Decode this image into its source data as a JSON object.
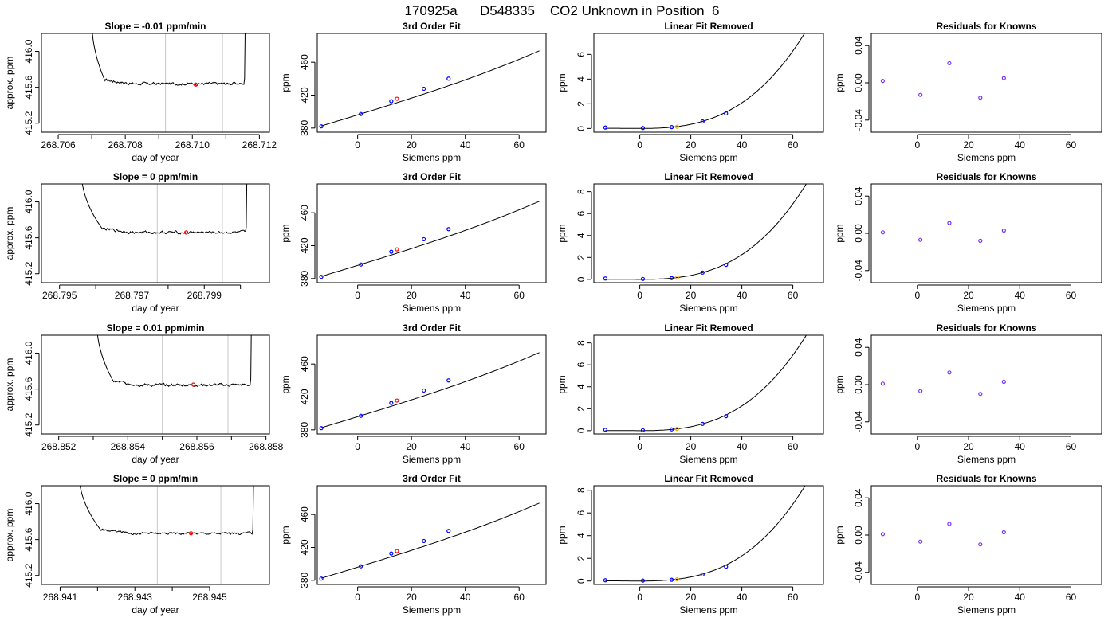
{
  "figure": {
    "title": "170925a      D548335    CO2 Unknown in Position  6"
  },
  "colors": {
    "axis": "#000000",
    "curve": "#000000",
    "window_line": "#c8c8c8",
    "known_point": "#0000ff",
    "unknown_point": "#ff0000",
    "unknown_fitted_point": "#ffa500",
    "residual_point": "#7b2ff7"
  },
  "chart_data": [
    {
      "type": "line",
      "title": "Slope =  -0.01  ppm/min",
      "xlabel": "day of year",
      "ylabel": "approx. ppm",
      "xlim": [
        268.7055,
        268.7123
      ],
      "ylim": [
        415.1,
        416.2
      ],
      "xticks": [
        268.706,
        268.707,
        268.708,
        268.709,
        268.71,
        268.711,
        268.712
      ],
      "xticklabels": [
        "268.706",
        "",
        "268.708",
        "",
        "268.710",
        "",
        "268.712"
      ],
      "yticks": [
        415.2,
        415.6,
        416.0
      ],
      "yticklabels": [
        "415.2",
        "415.6",
        "416.0"
      ],
      "window": [
        268.7092,
        268.7109
      ],
      "trace": {
        "start": 268.707,
        "drop_end": 268.7074,
        "end": 268.7116,
        "rise_start": 268.71155,
        "top": 416.35,
        "level": 415.64,
        "noise": 0.012
      },
      "marker": {
        "x": 268.7101,
        "y": 415.63
      }
    },
    {
      "type": "line",
      "title": "3rd Order Fit",
      "xlabel": "Siemens ppm",
      "ylabel": "ppm",
      "xlim": [
        -15,
        70
      ],
      "ylim": [
        375,
        495
      ],
      "xticks": [
        0,
        20,
        40,
        60
      ],
      "yticks": [
        380,
        420,
        460
      ],
      "curve": {
        "slope": 1.0,
        "intercept": 396.0,
        "quadratic": 0.0006,
        "cubic": 2.5e-05
      },
      "knowns": [
        {
          "x": -13.5,
          "y": 382.1
        },
        {
          "x": 1.2,
          "y": 397.1
        },
        {
          "x": 12.5,
          "y": 412.6
        },
        {
          "x": 24.6,
          "y": 427.8
        },
        {
          "x": 33.8,
          "y": 440.1
        }
      ],
      "unknown": {
        "x": 14.6,
        "y": 415.6
      }
    },
    {
      "type": "line",
      "title": "Linear Fit Removed",
      "xlabel": "Siemens ppm",
      "ylabel": "ppm",
      "xlim": [
        -18,
        72
      ],
      "ylim": [
        -0.3,
        7.7
      ],
      "xticks": [
        0,
        20,
        40,
        60
      ],
      "yticks": [
        0,
        2,
        4,
        6
      ],
      "curve": {
        "a": 0.0,
        "b": 0.0,
        "c": 0.0004,
        "d": 2.24e-05
      },
      "knowns": [
        {
          "x": -13.5,
          "y": 0.08
        },
        {
          "x": 1.2,
          "y": 0.04
        },
        {
          "x": 12.5,
          "y": 0.11
        },
        {
          "x": 24.6,
          "y": 0.57
        },
        {
          "x": 33.8,
          "y": 1.22
        }
      ],
      "unknown": {
        "x": 14.6,
        "y": 0.14
      }
    },
    {
      "type": "scatter",
      "title": "Residuals for Knowns",
      "xlabel": "Siemens ppm",
      "ylabel": "ppm",
      "xlim": [
        -18,
        72
      ],
      "ylim": [
        -0.053,
        0.053
      ],
      "xticks": [
        0,
        20,
        40,
        60
      ],
      "yticks": [
        -0.04,
        0.0,
        0.04
      ],
      "yticklabels": [
        "-0.04",
        "0.00",
        "0.04"
      ],
      "points": [
        {
          "x": -13.5,
          "y": 0.002
        },
        {
          "x": 1.2,
          "y": -0.013
        },
        {
          "x": 12.5,
          "y": 0.021
        },
        {
          "x": 24.6,
          "y": -0.016
        },
        {
          "x": 33.8,
          "y": 0.005
        }
      ]
    },
    {
      "type": "line",
      "title": "Slope =  0  ppm/min",
      "xlabel": "day of year",
      "ylabel": "approx. ppm",
      "xlim": [
        268.7945,
        268.8008
      ],
      "ylim": [
        415.1,
        416.2
      ],
      "xticks": [
        268.795,
        268.796,
        268.797,
        268.798,
        268.799,
        268.8
      ],
      "xticklabels": [
        "268.795",
        "",
        "268.797",
        "",
        "268.799",
        ""
      ],
      "yticks": [
        415.2,
        415.6,
        416.0
      ],
      "yticklabels": [
        "415.2",
        "415.6",
        "416.0"
      ],
      "window": [
        268.7977,
        268.7995
      ],
      "trace": {
        "start": 268.7956,
        "drop_end": 268.7962,
        "end": 268.8002,
        "rise_start": 268.80015,
        "top": 416.35,
        "level": 415.66,
        "noise": 0.012
      },
      "marker": {
        "x": 268.7985,
        "y": 415.66
      }
    },
    {
      "type": "line",
      "title": "3rd Order Fit",
      "xlabel": "Siemens ppm",
      "ylabel": "ppm",
      "xlim": [
        -15,
        70
      ],
      "ylim": [
        375,
        495
      ],
      "xticks": [
        0,
        20,
        40,
        60
      ],
      "yticks": [
        380,
        420,
        460
      ],
      "curve": {
        "slope": 1.0,
        "intercept": 396.0,
        "quadratic": 0.0006,
        "cubic": 2.5e-05
      },
      "knowns": [
        {
          "x": -13.5,
          "y": 382.1
        },
        {
          "x": 1.2,
          "y": 397.1
        },
        {
          "x": 12.5,
          "y": 412.6
        },
        {
          "x": 24.6,
          "y": 427.8
        },
        {
          "x": 33.8,
          "y": 440.1
        }
      ],
      "unknown": {
        "x": 14.6,
        "y": 415.6
      }
    },
    {
      "type": "line",
      "title": "Linear Fit Removed",
      "xlabel": "Siemens ppm",
      "ylabel": "ppm",
      "xlim": [
        -18,
        72
      ],
      "ylim": [
        -0.3,
        8.7
      ],
      "xticks": [
        0,
        20,
        40,
        60
      ],
      "yticks": [
        0,
        2,
        4,
        6,
        8
      ],
      "curve": {
        "a": 0.0,
        "b": 0.0,
        "c": 0.0004,
        "d": 2.52e-05
      },
      "knowns": [
        {
          "x": -13.5,
          "y": 0.08
        },
        {
          "x": 1.2,
          "y": 0.04
        },
        {
          "x": 12.5,
          "y": 0.12
        },
        {
          "x": 24.6,
          "y": 0.62
        },
        {
          "x": 33.8,
          "y": 1.32
        }
      ],
      "unknown": {
        "x": 14.6,
        "y": 0.16
      }
    },
    {
      "type": "scatter",
      "title": "Residuals for Knowns",
      "xlabel": "Siemens ppm",
      "ylabel": "ppm",
      "xlim": [
        -18,
        72
      ],
      "ylim": [
        -0.053,
        0.053
      ],
      "xticks": [
        0,
        20,
        40,
        60
      ],
      "yticks": [
        -0.04,
        0.0,
        0.04
      ],
      "yticklabels": [
        "-0.04",
        "0.00",
        "0.04"
      ],
      "points": [
        {
          "x": -13.5,
          "y": 0.001
        },
        {
          "x": 1.2,
          "y": -0.007
        },
        {
          "x": 12.5,
          "y": 0.011
        },
        {
          "x": 24.6,
          "y": -0.008
        },
        {
          "x": 33.8,
          "y": 0.003
        }
      ]
    },
    {
      "type": "line",
      "title": "Slope =  0.01  ppm/min",
      "xlabel": "day of year",
      "ylabel": "approx. ppm",
      "xlim": [
        268.8515,
        268.8581
      ],
      "ylim": [
        415.1,
        416.2
      ],
      "xticks": [
        268.852,
        268.853,
        268.854,
        268.855,
        268.856,
        268.857,
        268.858
      ],
      "xticklabels": [
        "268.852",
        "",
        "268.854",
        "",
        "268.856",
        "",
        "268.858"
      ],
      "yticks": [
        415.2,
        415.6,
        416.0
      ],
      "yticklabels": [
        "415.2",
        "415.6",
        "416.0"
      ],
      "window": [
        268.855,
        268.8569
      ],
      "trace": {
        "start": 268.8531,
        "drop_end": 268.8536,
        "end": 268.8576,
        "rise_start": 268.85755,
        "top": 416.35,
        "level": 415.645,
        "noise": 0.012
      },
      "marker": {
        "x": 268.8559,
        "y": 415.65
      }
    },
    {
      "type": "line",
      "title": "3rd Order Fit",
      "xlabel": "Siemens ppm",
      "ylabel": "ppm",
      "xlim": [
        -15,
        70
      ],
      "ylim": [
        375,
        495
      ],
      "xticks": [
        0,
        20,
        40,
        60
      ],
      "yticks": [
        380,
        420,
        460
      ],
      "curve": {
        "slope": 1.0,
        "intercept": 396.0,
        "quadratic": 0.0006,
        "cubic": 2.5e-05
      },
      "knowns": [
        {
          "x": -13.5,
          "y": 382.1
        },
        {
          "x": 1.2,
          "y": 397.1
        },
        {
          "x": 12.5,
          "y": 412.6
        },
        {
          "x": 24.6,
          "y": 427.8
        },
        {
          "x": 33.8,
          "y": 440.1
        }
      ],
      "unknown": {
        "x": 14.6,
        "y": 415.6
      }
    },
    {
      "type": "line",
      "title": "Linear Fit Removed",
      "xlabel": "Siemens ppm",
      "ylabel": "ppm",
      "xlim": [
        -18,
        72
      ],
      "ylim": [
        -0.3,
        8.7
      ],
      "xticks": [
        0,
        20,
        40,
        60
      ],
      "yticks": [
        0,
        2,
        4,
        6,
        8
      ],
      "curve": {
        "a": 0.0,
        "b": 0.0,
        "c": 0.0004,
        "d": 2.52e-05
      },
      "knowns": [
        {
          "x": -13.5,
          "y": 0.08
        },
        {
          "x": 1.2,
          "y": 0.04
        },
        {
          "x": 12.5,
          "y": 0.12
        },
        {
          "x": 24.6,
          "y": 0.62
        },
        {
          "x": 33.8,
          "y": 1.32
        }
      ],
      "unknown": {
        "x": 14.6,
        "y": 0.16
      }
    },
    {
      "type": "scatter",
      "title": "Residuals for Knowns",
      "xlabel": "Siemens ppm",
      "ylabel": "ppm",
      "xlim": [
        -18,
        72
      ],
      "ylim": [
        -0.053,
        0.053
      ],
      "xticks": [
        0,
        20,
        40,
        60
      ],
      "yticks": [
        -0.04,
        0.0,
        0.04
      ],
      "yticklabels": [
        "-0.04",
        "0.00",
        "0.04"
      ],
      "points": [
        {
          "x": -13.5,
          "y": 0.001
        },
        {
          "x": 1.2,
          "y": -0.007
        },
        {
          "x": 12.5,
          "y": 0.013
        },
        {
          "x": 24.6,
          "y": -0.01
        },
        {
          "x": 33.8,
          "y": 0.003
        }
      ]
    },
    {
      "type": "line",
      "title": "Slope =  0  ppm/min",
      "xlabel": "day of year",
      "ylabel": "approx. ppm",
      "xlim": [
        268.9405,
        268.9466
      ],
      "ylim": [
        415.1,
        416.2
      ],
      "xticks": [
        268.941,
        268.942,
        268.943,
        268.944,
        268.945
      ],
      "xticklabels": [
        "268.941",
        "",
        "268.943",
        "",
        "268.945"
      ],
      "yticks": [
        415.2,
        415.6,
        416.0
      ],
      "yticklabels": [
        "415.2",
        "415.6",
        "416.0"
      ],
      "window": [
        268.9436,
        268.9453
      ],
      "trace": {
        "start": 268.9415,
        "drop_end": 268.9421,
        "end": 268.9462,
        "rise_start": 268.94615,
        "top": 416.35,
        "level": 415.67,
        "noise": 0.01
      },
      "marker": {
        "x": 268.9445,
        "y": 415.67
      }
    },
    {
      "type": "line",
      "title": "3rd Order Fit",
      "xlabel": "Siemens ppm",
      "ylabel": "ppm",
      "xlim": [
        -15,
        70
      ],
      "ylim": [
        375,
        495
      ],
      "xticks": [
        0,
        20,
        40,
        60
      ],
      "yticks": [
        380,
        420,
        460
      ],
      "curve": {
        "slope": 1.0,
        "intercept": 396.0,
        "quadratic": 0.0006,
        "cubic": 2.5e-05
      },
      "knowns": [
        {
          "x": -13.5,
          "y": 382.1
        },
        {
          "x": 1.2,
          "y": 397.1
        },
        {
          "x": 12.5,
          "y": 412.6
        },
        {
          "x": 24.6,
          "y": 427.8
        },
        {
          "x": 33.8,
          "y": 440.1
        }
      ],
      "unknown": {
        "x": 14.6,
        "y": 415.6
      }
    },
    {
      "type": "line",
      "title": "Linear Fit Removed",
      "xlabel": "Siemens ppm",
      "ylabel": "ppm",
      "xlim": [
        -18,
        72
      ],
      "ylim": [
        -0.3,
        8.4
      ],
      "xticks": [
        0,
        20,
        40,
        60
      ],
      "yticks": [
        0,
        2,
        4,
        6,
        8
      ],
      "curve": {
        "a": 0.0,
        "b": 0.0,
        "c": 0.0004,
        "d": 2.47e-05
      },
      "knowns": [
        {
          "x": -13.5,
          "y": 0.07
        },
        {
          "x": 1.2,
          "y": 0.04
        },
        {
          "x": 12.5,
          "y": 0.11
        },
        {
          "x": 24.6,
          "y": 0.58
        },
        {
          "x": 33.8,
          "y": 1.26
        }
      ],
      "unknown": {
        "x": 14.6,
        "y": 0.15
      }
    },
    {
      "type": "scatter",
      "title": "Residuals for Knowns",
      "xlabel": "Siemens ppm",
      "ylabel": "ppm",
      "xlim": [
        -18,
        72
      ],
      "ylim": [
        -0.053,
        0.053
      ],
      "xticks": [
        0,
        20,
        40,
        60
      ],
      "yticks": [
        -0.04,
        0.0,
        0.04
      ],
      "yticklabels": [
        "-0.04",
        "0.00",
        "0.04"
      ],
      "points": [
        {
          "x": -13.5,
          "y": 0.001
        },
        {
          "x": 1.2,
          "y": -0.007
        },
        {
          "x": 12.5,
          "y": 0.012
        },
        {
          "x": 24.6,
          "y": -0.01
        },
        {
          "x": 33.8,
          "y": 0.003
        }
      ]
    }
  ]
}
